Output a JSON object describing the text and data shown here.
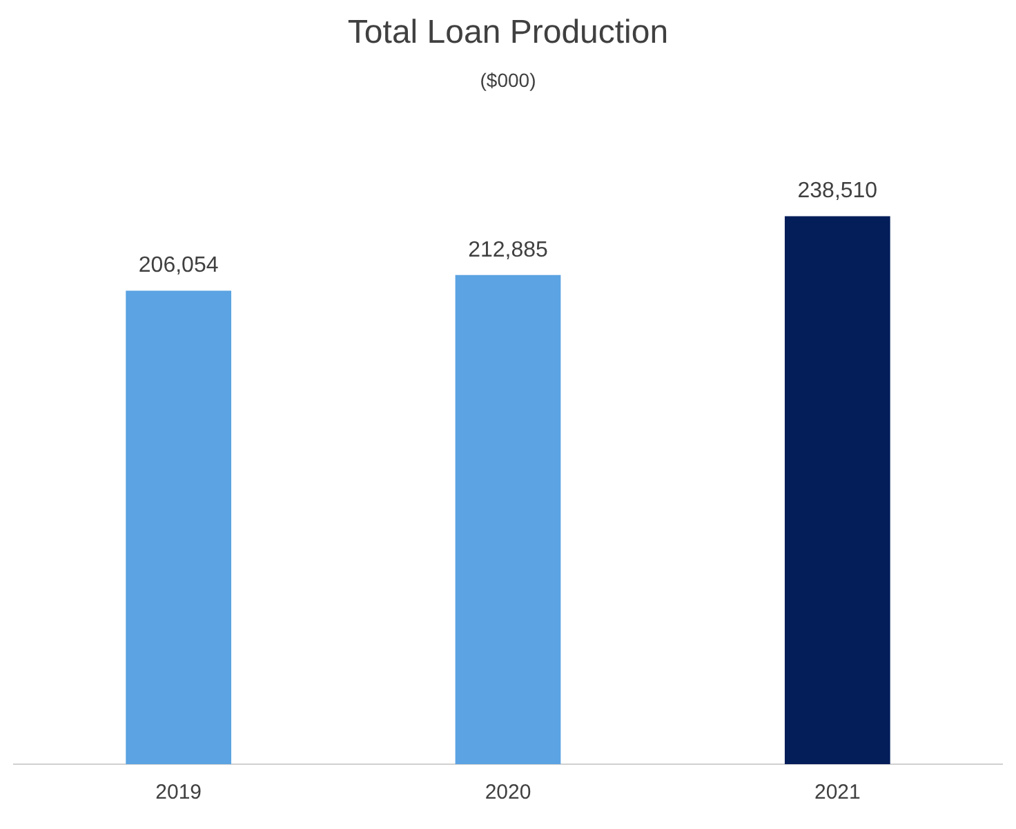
{
  "chart_data": {
    "type": "bar",
    "title": "Total Loan Production",
    "subtitle": "($000)",
    "categories": [
      "2019",
      "2020",
      "2021"
    ],
    "values": [
      206054,
      212885,
      238510
    ],
    "colors": [
      "#5ba3e2",
      "#5ba3e2",
      "#041e5a"
    ],
    "data_labels": true,
    "value_labels": [
      "206,054",
      "212,885",
      "238,510"
    ],
    "legend": false,
    "grid": false
  }
}
